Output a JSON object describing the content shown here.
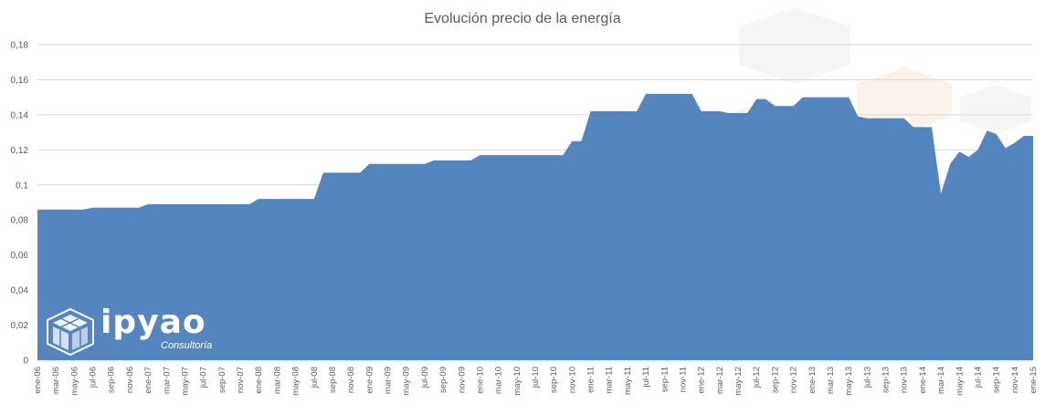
{
  "chart_data": {
    "type": "area",
    "title": "Evolución precio de la energía",
    "xlabel": "",
    "ylabel": "",
    "ylim": [
      0,
      0.18
    ],
    "yticks": [
      "0",
      "0,02",
      "0,04",
      "0,06",
      "0,08",
      "0,1",
      "0,12",
      "0,14",
      "0,16",
      "0,18"
    ],
    "grid": true,
    "legend": "none",
    "color": "#4F81BD",
    "x": [
      "ene-06",
      "feb-06",
      "mar-06",
      "abr-06",
      "may-06",
      "jun-06",
      "jul-06",
      "ago-06",
      "sep-06",
      "oct-06",
      "nov-06",
      "dic-06",
      "ene-07",
      "feb-07",
      "mar-07",
      "abr-07",
      "may-07",
      "jun-07",
      "jul-07",
      "ago-07",
      "sep-07",
      "oct-07",
      "nov-07",
      "dic-07",
      "ene-08",
      "feb-08",
      "mar-08",
      "abr-08",
      "may-08",
      "jun-08",
      "jul-08",
      "ago-08",
      "sep-08",
      "oct-08",
      "nov-08",
      "dic-08",
      "ene-09",
      "feb-09",
      "mar-09",
      "abr-09",
      "may-09",
      "jun-09",
      "jul-09",
      "ago-09",
      "sep-09",
      "oct-09",
      "nov-09",
      "dic-09",
      "ene-10",
      "feb-10",
      "mar-10",
      "abr-10",
      "may-10",
      "jun-10",
      "jul-10",
      "ago-10",
      "sep-10",
      "oct-10",
      "nov-10",
      "dic-10",
      "ene-11",
      "feb-11",
      "mar-11",
      "abr-11",
      "may-11",
      "jun-11",
      "jul-11",
      "ago-11",
      "sep-11",
      "oct-11",
      "nov-11",
      "dic-11",
      "ene-12",
      "feb-12",
      "mar-12",
      "abr-12",
      "may-12",
      "jun-12",
      "jul-12",
      "ago-12",
      "sep-12",
      "oct-12",
      "nov-12",
      "dic-12",
      "ene-13",
      "feb-13",
      "mar-13",
      "abr-13",
      "may-13",
      "jun-13",
      "jul-13",
      "ago-13",
      "sep-13",
      "oct-13",
      "nov-13",
      "dic-13",
      "ene-14",
      "feb-14",
      "mar-14",
      "abr-14",
      "may-14",
      "jun-14",
      "jul-14",
      "ago-14",
      "sep-14",
      "oct-14",
      "nov-14",
      "dic-14",
      "ene-15"
    ],
    "xtick_labels": [
      "ene-06",
      "mar-06",
      "may-06",
      "jul-06",
      "sep-06",
      "nov-06",
      "ene-07",
      "mar-07",
      "may-07",
      "jul-07",
      "sep-07",
      "nov-07",
      "ene-08",
      "mar-08",
      "may-08",
      "jul-08",
      "sep-08",
      "nov-08",
      "ene-09",
      "mar-09",
      "may-09",
      "jul-09",
      "sep-09",
      "nov-09",
      "ene-10",
      "mar-10",
      "may-10",
      "jul-10",
      "sep-10",
      "nov-10",
      "ene-11",
      "mar-11",
      "may-11",
      "jul-11",
      "sep-11",
      "nov-11",
      "ene-12",
      "mar-12",
      "may-12",
      "jul-12",
      "sep-12",
      "nov-12",
      "ene-13",
      "mar-13",
      "may-13",
      "jul-13",
      "sep-13",
      "nov-13",
      "ene-14",
      "mar-14",
      "may-14",
      "jul-14",
      "sep-14",
      "nov-14",
      "ene-15"
    ],
    "values": [
      0.086,
      0.086,
      0.086,
      0.086,
      0.086,
      0.086,
      0.087,
      0.087,
      0.087,
      0.087,
      0.087,
      0.087,
      0.089,
      0.089,
      0.089,
      0.089,
      0.089,
      0.089,
      0.089,
      0.089,
      0.089,
      0.089,
      0.089,
      0.089,
      0.092,
      0.092,
      0.092,
      0.092,
      0.092,
      0.092,
      0.092,
      0.107,
      0.107,
      0.107,
      0.107,
      0.107,
      0.112,
      0.112,
      0.112,
      0.112,
      0.112,
      0.112,
      0.112,
      0.114,
      0.114,
      0.114,
      0.114,
      0.114,
      0.117,
      0.117,
      0.117,
      0.117,
      0.117,
      0.117,
      0.117,
      0.117,
      0.117,
      0.117,
      0.125,
      0.125,
      0.142,
      0.142,
      0.142,
      0.142,
      0.142,
      0.142,
      0.152,
      0.152,
      0.152,
      0.152,
      0.152,
      0.152,
      0.142,
      0.142,
      0.142,
      0.141,
      0.141,
      0.141,
      0.149,
      0.149,
      0.145,
      0.145,
      0.145,
      0.15,
      0.15,
      0.15,
      0.15,
      0.15,
      0.15,
      0.139,
      0.138,
      0.138,
      0.138,
      0.138,
      0.138,
      0.133,
      0.133,
      0.133,
      0.095,
      0.112,
      0.119,
      0.116,
      0.12,
      0.131,
      0.129,
      0.121,
      0.124,
      0.128,
      0.128
    ]
  },
  "logo": {
    "name": "ipyao",
    "tagline": "Consultoría"
  }
}
